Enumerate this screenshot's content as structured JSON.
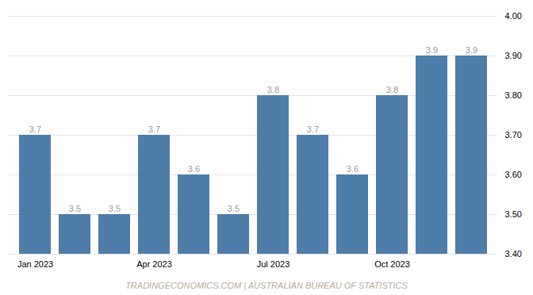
{
  "chart_data": {
    "type": "bar",
    "categories": [
      "Jan 2023",
      null,
      null,
      "Apr 2023",
      null,
      null,
      "Jul 2023",
      null,
      null,
      "Oct 2023",
      null,
      null
    ],
    "values": [
      3.7,
      3.5,
      3.5,
      3.7,
      3.6,
      3.5,
      3.8,
      3.7,
      3.6,
      3.8,
      3.9,
      3.9
    ],
    "color": "#4d7da8",
    "ylim": [
      3.4,
      4.0
    ],
    "yticks": [
      {
        "value": 3.4,
        "label": "3.40"
      },
      {
        "value": 3.5,
        "label": "3.50"
      },
      {
        "value": 3.6,
        "label": "3.60"
      },
      {
        "value": 3.7,
        "label": "3.70"
      },
      {
        "value": 3.8,
        "label": "3.80"
      },
      {
        "value": 3.9,
        "label": "3.90"
      },
      {
        "value": 4.0,
        "label": "4.00"
      }
    ],
    "grid": true,
    "data_labels": true,
    "annotations": [
      "TRADINGECONOMICS.COM | AUSTRALIAN BUREAU OF STATISTICS"
    ]
  }
}
